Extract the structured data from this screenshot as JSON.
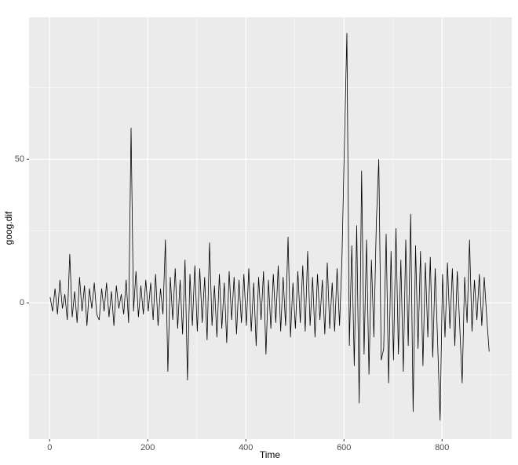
{
  "chart_data": {
    "type": "line",
    "x_label": "Time",
    "y_label": "goog.dif",
    "x": [
      1,
      6,
      11,
      16,
      21,
      26,
      31,
      36,
      41,
      46,
      51,
      56,
      61,
      66,
      71,
      76,
      81,
      86,
      91,
      96,
      101,
      106,
      111,
      116,
      121,
      126,
      131,
      136,
      141,
      146,
      151,
      156,
      161,
      166,
      171,
      176,
      181,
      186,
      191,
      196,
      201,
      206,
      211,
      216,
      221,
      226,
      231,
      236,
      241,
      246,
      251,
      256,
      261,
      266,
      271,
      276,
      281,
      286,
      291,
      296,
      301,
      306,
      311,
      316,
      321,
      326,
      331,
      336,
      341,
      346,
      351,
      356,
      361,
      366,
      371,
      376,
      381,
      386,
      391,
      396,
      401,
      406,
      411,
      416,
      421,
      426,
      431,
      436,
      441,
      446,
      451,
      456,
      461,
      466,
      471,
      476,
      481,
      486,
      491,
      496,
      501,
      506,
      511,
      516,
      521,
      526,
      531,
      536,
      541,
      546,
      551,
      556,
      561,
      566,
      571,
      576,
      581,
      586,
      591,
      596,
      601,
      606,
      611,
      616,
      621,
      626,
      631,
      636,
      641,
      646,
      651,
      656,
      661,
      666,
      671,
      676,
      681,
      686,
      691,
      696,
      701,
      706,
      711,
      716,
      721,
      726,
      731,
      736,
      741,
      746,
      751,
      756,
      761,
      766,
      771,
      776,
      781,
      786,
      791,
      796,
      801,
      806,
      811,
      816,
      821,
      826,
      831,
      836,
      841,
      846,
      851,
      856,
      861,
      866,
      871,
      876,
      881,
      886,
      891,
      896
    ],
    "series": [
      {
        "color": "#000000",
        "values": [
          2,
          -3,
          5,
          -4,
          8,
          -2,
          3,
          -6,
          17,
          -5,
          4,
          -7,
          9,
          -3,
          6,
          -8,
          5,
          -2,
          7,
          -4,
          -6,
          5,
          -3,
          7,
          -5,
          4,
          -8,
          6,
          -2,
          3,
          -4,
          8,
          -7,
          61,
          -3,
          11,
          -5,
          6,
          -4,
          8,
          -3,
          7,
          -6,
          10,
          -8,
          5,
          -4,
          22,
          -24,
          9,
          -6,
          12,
          -9,
          8,
          -11,
          15,
          -27,
          10,
          -8,
          13,
          -10,
          12,
          -7,
          9,
          -13,
          21,
          -8,
          6,
          -12,
          10,
          -9,
          7,
          -14,
          11,
          -6,
          9,
          -11,
          8,
          -7,
          10,
          -8,
          12,
          -10,
          7,
          -15,
          9,
          -6,
          11,
          -18,
          8,
          -9,
          10,
          -7,
          13,
          -10,
          9,
          -8,
          23,
          -12,
          7,
          -9,
          11,
          -7,
          13,
          -10,
          18,
          -8,
          9,
          -12,
          10,
          -6,
          8,
          -11,
          14,
          -9,
          7,
          -10,
          12,
          -8,
          16,
          56,
          94,
          -15,
          20,
          -22,
          27,
          -35,
          46,
          -18,
          22,
          -25,
          15,
          -12,
          28,
          50,
          -20,
          -16,
          24,
          -28,
          18,
          -20,
          26,
          -18,
          15,
          -24,
          22,
          -15,
          31,
          -38,
          20,
          -16,
          18,
          -22,
          14,
          -12,
          16,
          -19,
          12,
          -14,
          -41,
          10,
          -12,
          14,
          -9,
          12,
          -15,
          11,
          -8,
          -28,
          9,
          -7,
          22,
          -10,
          8,
          -6,
          10,
          -8,
          9,
          -5,
          -17
        ]
      }
    ],
    "xlim": [
      -42,
      942
    ],
    "ylim": [
      -47.5,
      99.5
    ],
    "xticks": [
      0,
      200,
      400,
      600,
      800
    ],
    "yticks": [
      0,
      50
    ],
    "xminor": [
      100,
      300,
      500,
      700,
      900
    ],
    "yminor": [
      -25,
      25,
      75
    ],
    "grid": true
  }
}
